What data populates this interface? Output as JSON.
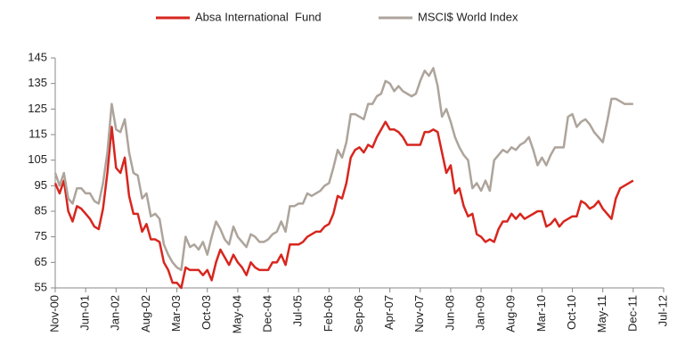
{
  "chart_data": {
    "type": "line",
    "categories": [
      "Nov-00",
      null,
      null,
      null,
      null,
      null,
      null,
      "Jun-01",
      null,
      null,
      null,
      null,
      null,
      null,
      "Jan-02",
      null,
      null,
      null,
      null,
      null,
      null,
      "Aug-02",
      null,
      null,
      null,
      null,
      null,
      null,
      "Mar-03",
      null,
      null,
      null,
      null,
      null,
      null,
      "Oct-03",
      null,
      null,
      null,
      null,
      null,
      null,
      "May-04",
      null,
      null,
      null,
      null,
      null,
      null,
      "Dec-04",
      null,
      null,
      null,
      null,
      null,
      null,
      "Jul-05",
      null,
      null,
      null,
      null,
      null,
      null,
      "Feb-06",
      null,
      null,
      null,
      null,
      null,
      null,
      "Sep-06",
      null,
      null,
      null,
      null,
      null,
      null,
      "Apr-07",
      null,
      null,
      null,
      null,
      null,
      null,
      "Nov-07",
      null,
      null,
      null,
      null,
      null,
      null,
      "Jun-08",
      null,
      null,
      null,
      null,
      null,
      null,
      "Jan-09",
      null,
      null,
      null,
      null,
      null,
      null,
      "Aug-09",
      null,
      null,
      null,
      null,
      null,
      null,
      "Mar-10",
      null,
      null,
      null,
      null,
      null,
      null,
      "Oct-10",
      null,
      null,
      null,
      null,
      null,
      null,
      "May-11",
      null,
      null,
      null,
      null,
      null,
      null,
      "Dec-11",
      null,
      null,
      null,
      null,
      null,
      null,
      "Jul-12"
    ],
    "series": [
      {
        "name": "Absa International  Fund",
        "color": "#d7261e",
        "values": [
          96,
          92,
          97,
          85,
          81,
          87,
          86,
          84,
          82,
          79,
          78,
          86,
          100,
          118,
          102,
          100,
          106,
          91,
          84,
          84,
          77,
          80,
          74,
          74,
          73,
          65,
          62,
          57,
          57,
          55,
          63,
          62,
          62,
          62,
          60,
          62,
          58,
          65,
          70,
          67,
          64,
          68,
          65,
          63,
          60,
          65,
          63,
          62,
          62,
          62,
          65,
          65,
          68,
          64,
          72,
          72,
          72,
          73,
          75,
          76,
          77,
          77,
          79,
          80,
          84,
          91,
          90,
          96,
          106,
          109,
          110,
          108,
          111,
          110,
          114,
          117,
          120,
          117,
          117,
          116,
          114,
          111,
          111,
          111,
          111,
          116,
          116,
          117,
          116,
          108,
          100,
          103,
          92,
          94,
          87,
          83,
          84,
          76,
          75,
          73,
          74,
          73,
          78,
          81,
          81,
          84,
          82,
          84,
          82,
          83,
          84,
          85,
          85,
          79,
          80,
          82,
          79,
          81,
          82,
          83,
          83,
          89,
          88,
          86,
          87,
          89,
          86,
          84,
          82,
          90,
          94,
          95,
          96,
          97,
          null,
          null,
          null,
          null,
          null,
          null,
          null
        ]
      },
      {
        "name": "MSCI$ World Index",
        "color": "#ada49b",
        "values": [
          100,
          95,
          100,
          90,
          88,
          94,
          94,
          92,
          92,
          89,
          88,
          96,
          108,
          127,
          117,
          116,
          121,
          108,
          100,
          99,
          90,
          92,
          83,
          84,
          82,
          72,
          68,
          65,
          63,
          62,
          75,
          71,
          72,
          70,
          73,
          68,
          75,
          81,
          78,
          74,
          72,
          79,
          75,
          73,
          71,
          76,
          75,
          73,
          73,
          74,
          76,
          77,
          81,
          77,
          87,
          87,
          88,
          88,
          92,
          91,
          92,
          93,
          95,
          96,
          102,
          109,
          106,
          112,
          123,
          123,
          122,
          121,
          127,
          127,
          130,
          131,
          136,
          135,
          132,
          134,
          132,
          131,
          130,
          131,
          136,
          140,
          138,
          141,
          134,
          122,
          125,
          120,
          114,
          110,
          107,
          105,
          94,
          96,
          93,
          97,
          93,
          105,
          107,
          109,
          108,
          110,
          109,
          111,
          112,
          114,
          109,
          103,
          106,
          103,
          107,
          110,
          110,
          110,
          122,
          123,
          118,
          120,
          121,
          119,
          116,
          114,
          112,
          120,
          129,
          129,
          128,
          127,
          127,
          127,
          null,
          null,
          null,
          null,
          null,
          null,
          null
        ]
      }
    ],
    "ylim": [
      55,
      145
    ],
    "yticks": [
      55,
      65,
      75,
      85,
      95,
      105,
      115,
      125,
      135,
      145
    ],
    "legend": "top",
    "grid": false
  }
}
